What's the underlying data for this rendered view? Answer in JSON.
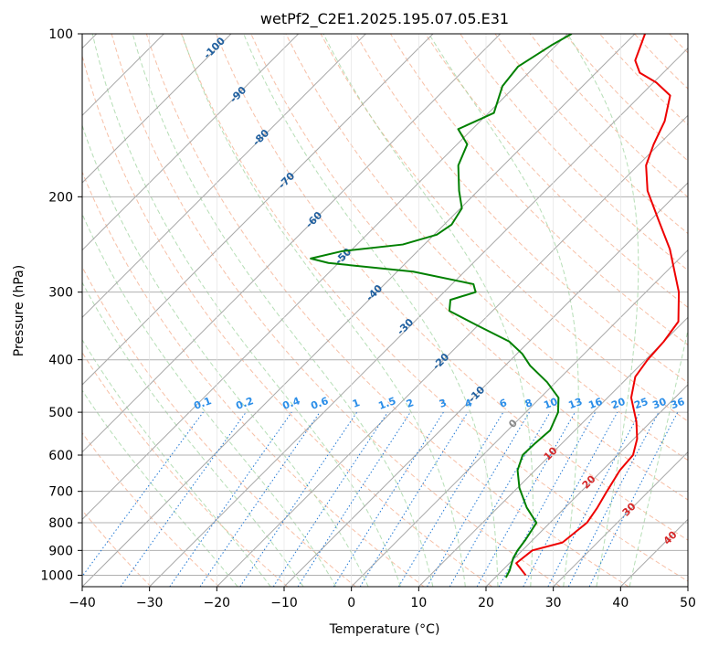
{
  "chart_data": {
    "type": "line",
    "subtype": "skew-t log-p diagram",
    "title": "wetPf2_C2E1.2025.195.07.05.E31",
    "xlabel": "Temperature (°C)",
    "ylabel": "Pressure (hPa)",
    "xlim": [
      -40,
      50
    ],
    "ylim": [
      1050,
      100
    ],
    "y_scale": "log",
    "grid": true,
    "x_ticks": [
      "−40",
      "−30",
      "−20",
      "−10",
      "0",
      "10",
      "20",
      "30",
      "40",
      "50"
    ],
    "y_ticks": [
      "100",
      "200",
      "300",
      "400",
      "500",
      "600",
      "700",
      "800",
      "900",
      "1000"
    ],
    "isotherm_labels": [
      "-100",
      "-90",
      "-80",
      "-70",
      "-60",
      "-50",
      "-40",
      "-30",
      "-20",
      "-10"
    ],
    "mixing_ratio_labels": [
      "0.1",
      "0.2",
      "0.4",
      "0.6",
      "1",
      "1.5",
      "2",
      "3",
      "4",
      "6",
      "8",
      "10",
      "13",
      "16",
      "20",
      "25",
      "30",
      "36"
    ],
    "freezing_label": "0",
    "warm_isotherm_labels": [
      "10",
      "20",
      "30",
      "40"
    ],
    "series": [
      {
        "color": "#ee0000",
        "points": [
          [
            24.2,
            1000
          ],
          [
            21.0,
            950
          ],
          [
            21.5,
            900
          ],
          [
            24.8,
            870
          ],
          [
            25.5,
            800
          ],
          [
            24.8,
            750
          ],
          [
            23.8,
            700
          ],
          [
            22.6,
            640
          ],
          [
            22.3,
            600
          ],
          [
            20.5,
            560
          ],
          [
            17.8,
            520
          ],
          [
            13.5,
            470
          ],
          [
            11.0,
            430
          ],
          [
            10.3,
            400
          ],
          [
            10.0,
            370
          ],
          [
            9.2,
            340
          ],
          [
            4.9,
            300
          ],
          [
            -2.8,
            250
          ],
          [
            -9.0,
            220
          ],
          [
            -14.8,
            195
          ],
          [
            -18.8,
            175
          ],
          [
            -20.8,
            160
          ],
          [
            -22.6,
            145
          ],
          [
            -25.6,
            130
          ],
          [
            -29.6,
            123
          ],
          [
            -33.5,
            118
          ],
          [
            -36.0,
            112
          ],
          [
            -38.5,
            100
          ]
        ]
      },
      {
        "color": "#008000",
        "points": [
          [
            21.6,
            1010
          ],
          [
            21.1,
            980
          ],
          [
            19.8,
            930
          ],
          [
            19.3,
            900
          ],
          [
            18.9,
            860
          ],
          [
            18.0,
            800
          ],
          [
            14.3,
            750
          ],
          [
            10.3,
            690
          ],
          [
            7.4,
            640
          ],
          [
            5.9,
            600
          ],
          [
            6.0,
            570
          ],
          [
            6.3,
            540
          ],
          [
            4.8,
            500
          ],
          [
            2.7,
            470
          ],
          [
            -1.3,
            440
          ],
          [
            -6.3,
            410
          ],
          [
            -9.2,
            390
          ],
          [
            -13.0,
            370
          ],
          [
            -20.3,
            345
          ],
          [
            -26.4,
            325
          ],
          [
            -27.9,
            310
          ],
          [
            -25.3,
            300
          ],
          [
            -26.8,
            290
          ],
          [
            -37.6,
            275
          ],
          [
            -51.5,
            265
          ],
          [
            -54.8,
            260
          ],
          [
            -51.2,
            252
          ],
          [
            -43.2,
            245
          ],
          [
            -39.6,
            235
          ],
          [
            -38.9,
            225
          ],
          [
            -39.8,
            210
          ],
          [
            -42.8,
            195
          ],
          [
            -46.7,
            175
          ],
          [
            -48.5,
            160
          ],
          [
            -52.1,
            150
          ],
          [
            -49.2,
            140
          ],
          [
            -51.9,
            125
          ],
          [
            -52.5,
            115
          ],
          [
            -50.7,
            105
          ],
          [
            -49.4,
            100
          ]
        ]
      }
    ]
  }
}
